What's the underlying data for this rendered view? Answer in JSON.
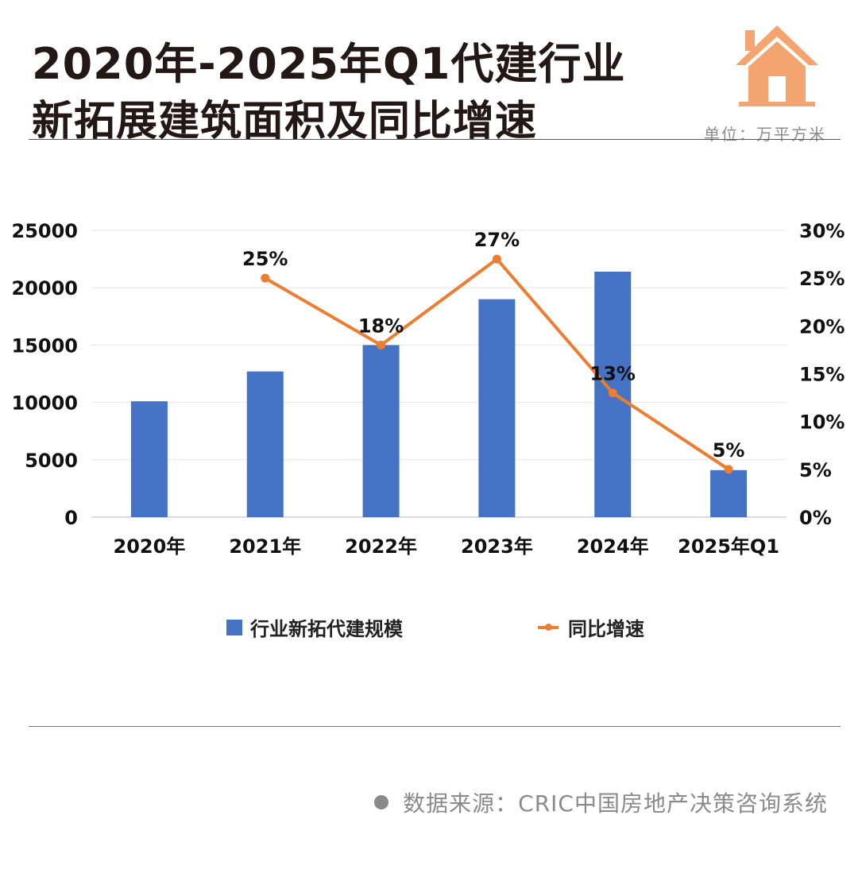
{
  "header": {
    "title_line1": "2020年-2025年Q1代建行业",
    "title_line2": "新拓展建筑面积及同比增速",
    "unit": "单位：万平方米"
  },
  "footer": {
    "source": "数据来源：CRIC中国房地产决策咨询系统"
  },
  "colors": {
    "bar": "#4472C4",
    "line": "#ED7D31",
    "accent": "#F4A46E"
  },
  "icons": {
    "logo": "house-icon"
  },
  "chart_data": {
    "type": "bar",
    "categories": [
      "2020年",
      "2021年",
      "2022年",
      "2023年",
      "2024年",
      "2025年Q1"
    ],
    "series": [
      {
        "name": "行业新拓代建规模",
        "type": "bar",
        "axis": "left",
        "values": [
          10100,
          12700,
          15000,
          19000,
          21400,
          4100
        ]
      },
      {
        "name": "同比增速",
        "type": "line",
        "axis": "right",
        "values": [
          null,
          25,
          18,
          27,
          13,
          5
        ]
      }
    ],
    "data_labels": [
      "",
      "25%",
      "18%",
      "27%",
      "13%",
      "5%"
    ],
    "y_left": {
      "min": 0,
      "max": 25000,
      "ticks": [
        "0",
        "5000",
        "10000",
        "15000",
        "20000",
        "25000"
      ]
    },
    "y_right": {
      "min": 0,
      "max": 30,
      "ticks": [
        "0%",
        "5%",
        "10%",
        "15%",
        "20%",
        "25%",
        "30%"
      ]
    },
    "grid": true,
    "legend_position": "bottom"
  }
}
